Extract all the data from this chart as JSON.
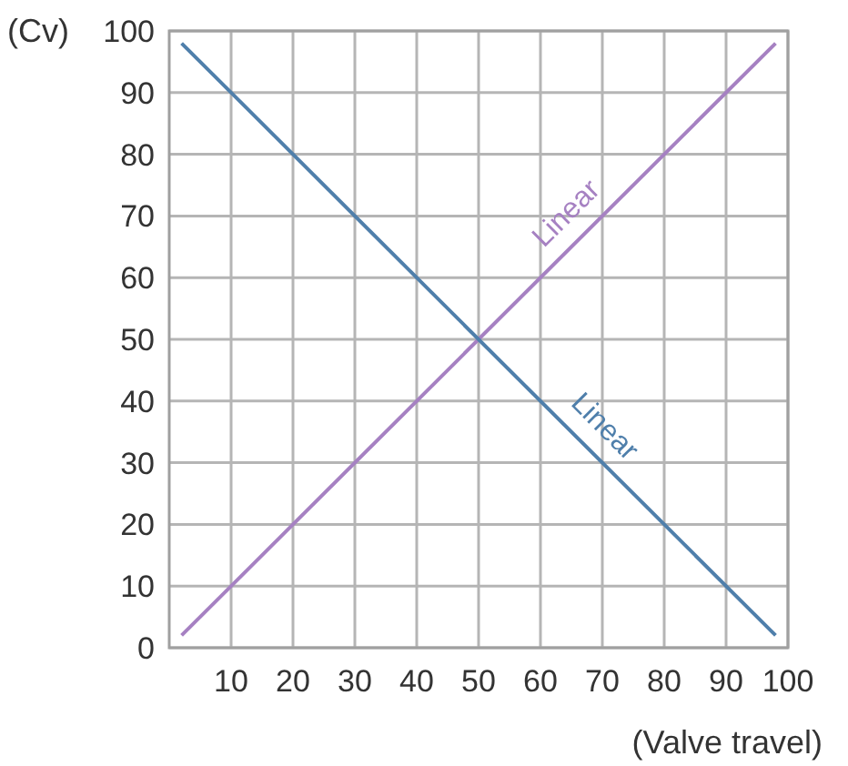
{
  "chart_data": {
    "type": "line",
    "xlabel": "(Valve travel)",
    "ylabel": "(Cv)",
    "xlim": [
      0,
      100
    ],
    "xticks": [
      10,
      20,
      30,
      40,
      50,
      60,
      70,
      80,
      90,
      100
    ],
    "ylim": [
      0,
      100
    ],
    "yticks": [
      0,
      10,
      20,
      30,
      40,
      50,
      60,
      70,
      80,
      90,
      100
    ],
    "x": [
      2,
      98
    ],
    "grid": true,
    "marker": "none",
    "line_style": "solid",
    "series": [
      {
        "color": "#a681c2",
        "values": [
          2,
          98
        ]
      },
      {
        "color": "#4f7fab",
        "values": [
          98,
          2
        ]
      }
    ],
    "annotations": [
      "Linear",
      "Linear"
    ]
  }
}
